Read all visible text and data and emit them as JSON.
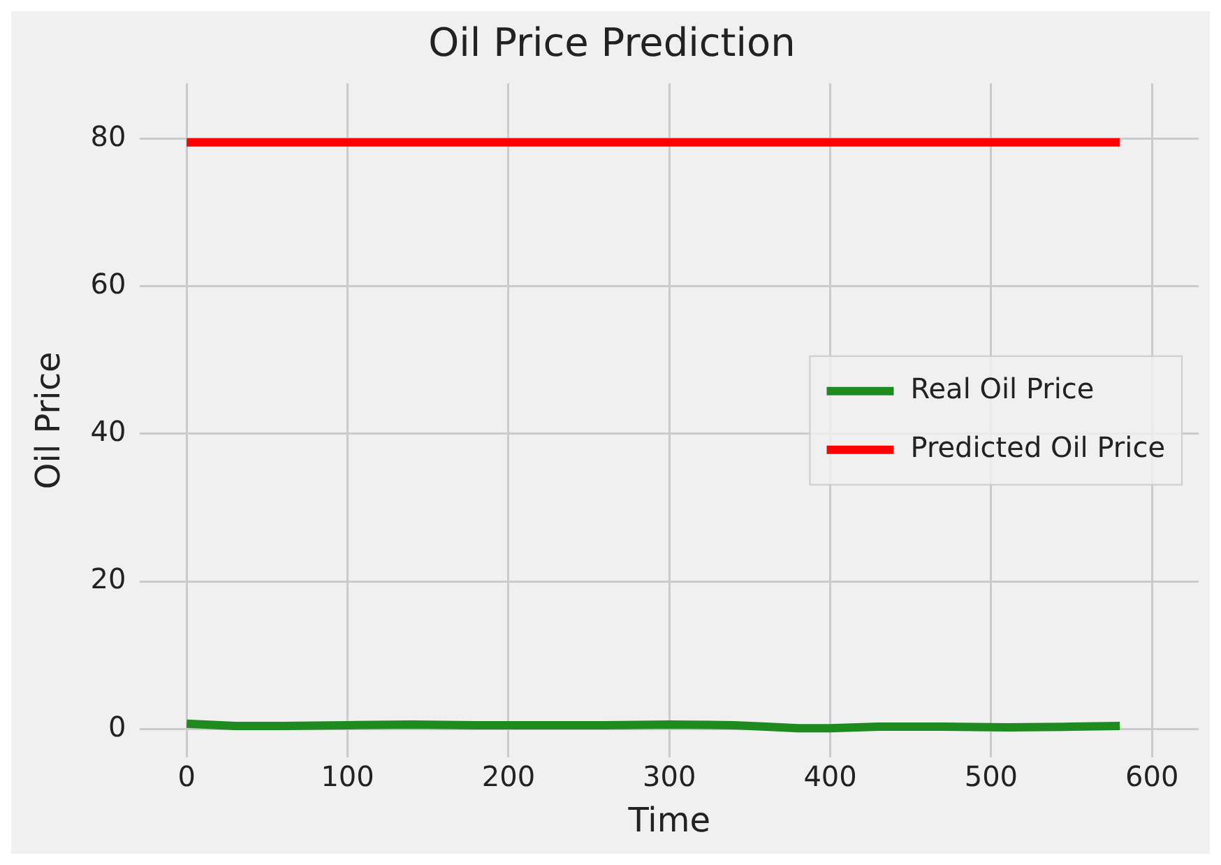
{
  "chart_data": {
    "type": "line",
    "title": "Oil Price Prediction",
    "xlabel": "Time",
    "ylabel": "Oil Price",
    "xlim": [
      -29,
      629
    ],
    "ylim": [
      -3.9,
      87.5
    ],
    "xticks": [
      0,
      100,
      200,
      300,
      400,
      500,
      600
    ],
    "yticks": [
      0,
      20,
      40,
      60,
      80
    ],
    "grid": true,
    "legend": "right",
    "line_style": "solid",
    "marker": "none",
    "series": [
      {
        "name": "Real Oil Price",
        "color": "#1f8a1f",
        "x": [
          0,
          30,
          60,
          100,
          140,
          180,
          220,
          260,
          300,
          340,
          360,
          380,
          400,
          430,
          470,
          510,
          550,
          580
        ],
        "values": [
          0.7,
          0.4,
          0.4,
          0.5,
          0.6,
          0.5,
          0.5,
          0.5,
          0.6,
          0.5,
          0.3,
          0.1,
          0.1,
          0.3,
          0.3,
          0.2,
          0.3,
          0.4
        ]
      },
      {
        "name": "Predicted Oil Price",
        "color": "#ff0000",
        "x": [
          0,
          580
        ],
        "values": [
          79.5,
          79.5
        ]
      }
    ]
  }
}
